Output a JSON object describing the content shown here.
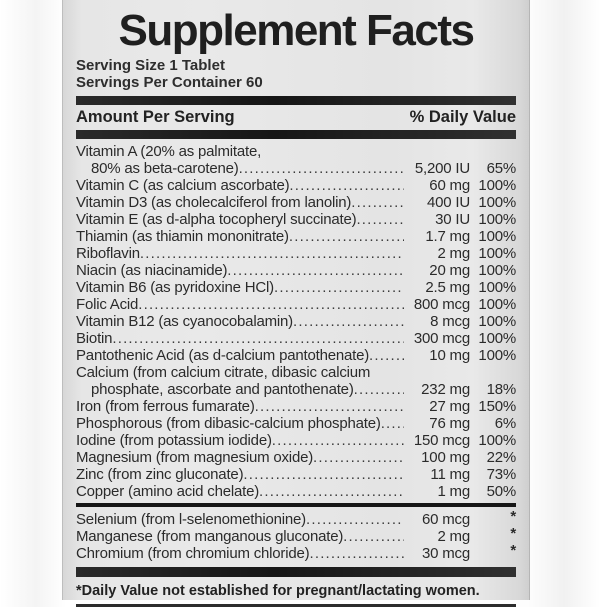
{
  "label": {
    "title": "Supplement Facts",
    "serving_size": "Serving Size 1 Tablet",
    "servings_per_container": "Servings Per Container 60",
    "columns": {
      "left": "Amount Per Serving",
      "right": "% Daily Value"
    },
    "rows": [
      {
        "name": "Vitamin A (20% as palmitate,",
        "name2": "80% as beta-carotene)",
        "amount": "5,200 IU",
        "dv": "65%"
      },
      {
        "name": "Vitamin C (as calcium ascorbate)",
        "amount": "60 mg",
        "dv": "100%"
      },
      {
        "name": "Vitamin D3 (as cholecalciferol from lanolin)",
        "amount": "400 IU",
        "dv": "100%"
      },
      {
        "name": "Vitamin E (as d-alpha tocopheryl succinate)",
        "amount": "30 IU",
        "dv": "100%"
      },
      {
        "name": "Thiamin (as thiamin mononitrate)",
        "amount": "1.7 mg",
        "dv": "100%"
      },
      {
        "name": "Riboflavin",
        "amount": "2 mg",
        "dv": "100%"
      },
      {
        "name": "Niacin (as niacinamide)",
        "amount": "20 mg",
        "dv": "100%"
      },
      {
        "name": "Vitamin B6 (as pyridoxine HCl)",
        "amount": "2.5 mg",
        "dv": "100%"
      },
      {
        "name": "Folic Acid",
        "amount": "800 mcg",
        "dv": "100%"
      },
      {
        "name": "Vitamin B12 (as cyanocobalamin)",
        "amount": "8 mcg",
        "dv": "100%"
      },
      {
        "name": "Biotin",
        "amount": "300 mcg",
        "dv": "100%"
      },
      {
        "name": "Pantothenic Acid (as d-calcium pantothenate)",
        "amount": "10 mg",
        "dv": "100%"
      },
      {
        "name": "Calcium (from calcium citrate, dibasic calcium",
        "name2": "phosphate, ascorbate and pantothenate)",
        "amount": "232 mg",
        "dv": "18%"
      },
      {
        "name": "Iron (from ferrous fumarate)",
        "amount": "27 mg",
        "dv": "150%"
      },
      {
        "name": "Phosphorous (from dibasic-calcium phosphate)",
        "amount": "76 mg",
        "dv": "6%"
      },
      {
        "name": "Iodine (from potassium iodide)",
        "amount": "150 mcg",
        "dv": "100%"
      },
      {
        "name": "Magnesium (from magnesium oxide)",
        "amount": "100 mg",
        "dv": "22%"
      },
      {
        "name": "Zinc (from zinc gluconate)",
        "amount": "11 mg",
        "dv": "73%"
      },
      {
        "name": "Copper (amino acid chelate)",
        "amount": "1 mg",
        "dv": "50%"
      }
    ],
    "rows_no_dv": [
      {
        "name": "Selenium (from l-selenomethionine)",
        "amount": "60 mcg",
        "dv": "*"
      },
      {
        "name": "Manganese (from manganous gluconate)",
        "amount": "2 mg",
        "dv": "*"
      },
      {
        "name": "Chromium (from chromium chloride)",
        "amount": "30 mcg",
        "dv": "*"
      }
    ],
    "footnote": "*Daily Value not established for pregnant/lactating women.",
    "colors": {
      "label_background": "#e6e6e6",
      "bar": "#1b1b1b",
      "text": "#2b2b2b"
    }
  }
}
